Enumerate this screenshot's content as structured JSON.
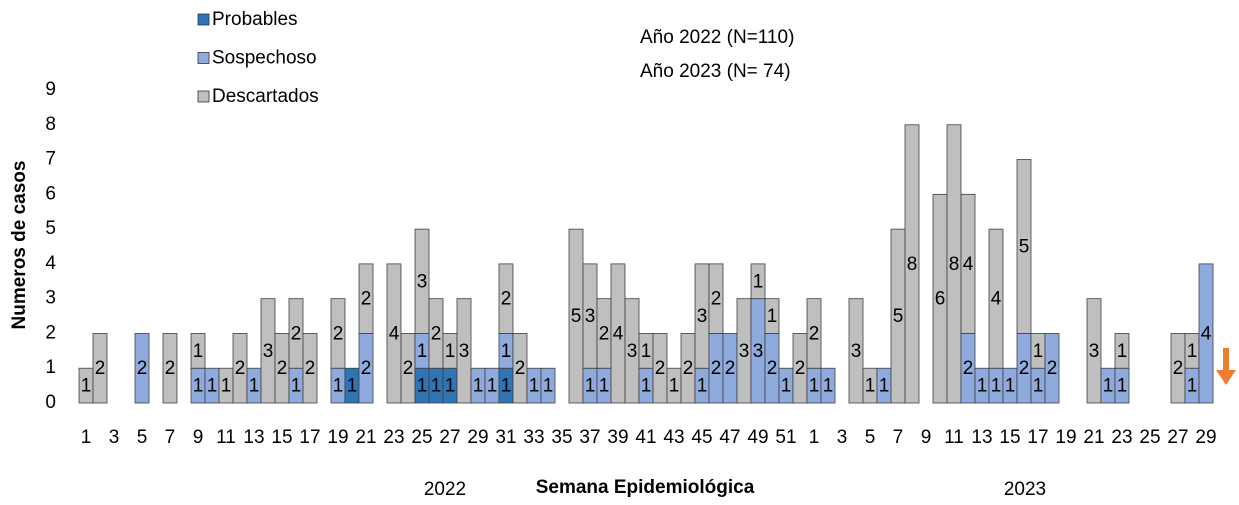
{
  "chart_data": {
    "type": "stacked-bar",
    "legend": [
      "Probables",
      "Sospechoso",
      "Descartados"
    ],
    "annotations": [
      "Año 2022 (N=110)",
      "Año 2023 (N= 74)"
    ],
    "x_label": "Semana Epidemiológica",
    "y_label": "Numeros de casos",
    "year_labels": [
      "2022",
      "2023"
    ],
    "categories": [
      "1",
      null,
      "3",
      null,
      "5",
      null,
      "7",
      null,
      "9",
      null,
      "11",
      null,
      "13",
      null,
      "15",
      null,
      "17",
      null,
      "19",
      null,
      "21",
      null,
      "23",
      null,
      "25",
      null,
      "27",
      null,
      "29",
      null,
      "31",
      null,
      "33",
      null,
      "35",
      null,
      "37",
      null,
      "39",
      null,
      "41",
      null,
      "43",
      null,
      "45",
      null,
      "47",
      null,
      "49",
      null,
      "51",
      null,
      "1",
      null,
      "3",
      null,
      "5",
      null,
      "7",
      null,
      "9",
      null,
      "11",
      null,
      "13",
      null,
      "15",
      null,
      "17",
      null,
      "19",
      null,
      "21",
      null,
      "23",
      null,
      "25",
      null,
      "27",
      null,
      "29"
    ],
    "series": [
      {
        "name": "Probables",
        "color": "#2e75b6",
        "values": [
          0,
          0,
          0,
          0,
          0,
          0,
          0,
          0,
          0,
          0,
          0,
          0,
          0,
          0,
          0,
          0,
          0,
          0,
          0,
          1,
          0,
          0,
          0,
          0,
          1,
          1,
          1,
          0,
          0,
          0,
          1,
          0,
          0,
          0,
          0,
          0,
          0,
          0,
          0,
          0,
          0,
          0,
          0,
          0,
          0,
          0,
          0,
          0,
          0,
          0,
          0,
          0,
          0,
          0,
          0,
          0,
          0,
          0,
          0,
          0,
          0,
          0,
          0,
          0,
          0,
          0,
          0,
          0,
          0,
          0,
          0,
          0,
          0,
          0,
          0,
          0,
          0,
          0,
          0,
          0,
          0
        ]
      },
      {
        "name": "Sospechoso",
        "color": "#8faadc",
        "values": [
          0,
          0,
          0,
          0,
          2,
          0,
          0,
          0,
          1,
          1,
          0,
          0,
          1,
          0,
          0,
          1,
          0,
          0,
          1,
          0,
          2,
          0,
          0,
          0,
          1,
          0,
          0,
          0,
          1,
          1,
          1,
          0,
          1,
          1,
          0,
          0,
          1,
          1,
          0,
          0,
          1,
          0,
          0,
          0,
          1,
          2,
          2,
          0,
          3,
          2,
          1,
          0,
          1,
          1,
          0,
          0,
          0,
          1,
          0,
          0,
          0,
          0,
          0,
          2,
          1,
          1,
          1,
          2,
          1,
          2,
          0,
          0,
          0,
          1,
          1,
          0,
          0,
          0,
          0,
          1,
          4
        ]
      },
      {
        "name": "Descartados",
        "color": "#bfbfbf",
        "values": [
          1,
          2,
          0,
          0,
          0,
          0,
          2,
          0,
          1,
          0,
          1,
          2,
          0,
          3,
          2,
          2,
          2,
          0,
          2,
          0,
          2,
          0,
          4,
          2,
          3,
          2,
          1,
          3,
          0,
          0,
          2,
          2,
          0,
          0,
          0,
          5,
          3,
          2,
          4,
          3,
          1,
          2,
          1,
          2,
          3,
          2,
          0,
          3,
          1,
          1,
          0,
          2,
          2,
          0,
          0,
          3,
          1,
          0,
          5,
          8,
          0,
          6,
          8,
          4,
          0,
          4,
          0,
          5,
          1,
          0,
          0,
          0,
          3,
          0,
          1,
          0,
          0,
          0,
          2,
          1,
          0
        ]
      }
    ],
    "ylim": [
      0,
      9
    ],
    "yticks": [
      0,
      1,
      2,
      3,
      4,
      5,
      6,
      7,
      8,
      9
    ],
    "grid": false
  }
}
